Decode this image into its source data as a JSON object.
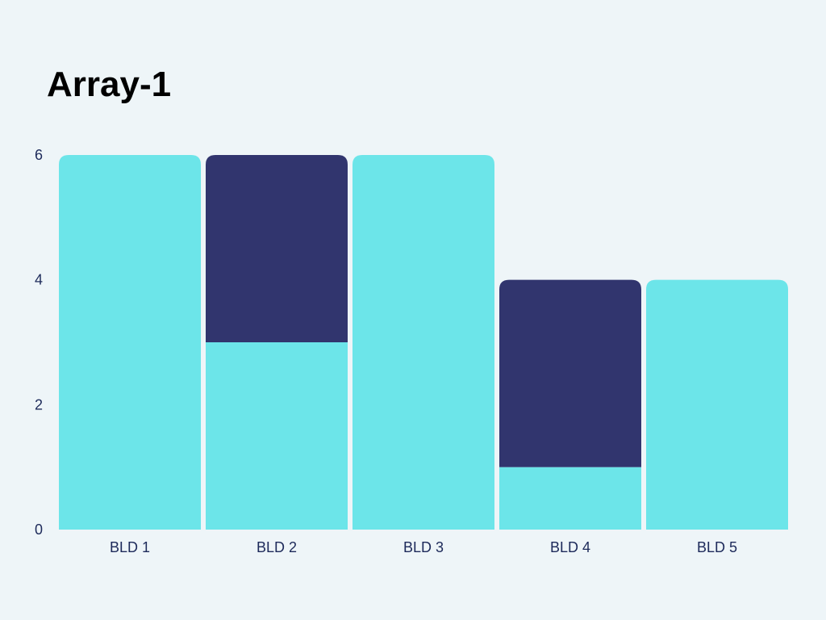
{
  "chart_data": {
    "type": "bar",
    "stacked": true,
    "title": "Array-1",
    "xlabel": "",
    "ylabel": "",
    "categories": [
      "BLD 1",
      "BLD 2",
      "BLD 3",
      "BLD 4",
      "BLD 5"
    ],
    "series": [
      {
        "color": "#6ce5e9",
        "values": [
          6,
          3,
          6,
          1,
          4
        ]
      },
      {
        "color": "#31356e",
        "values": [
          0,
          3,
          0,
          3,
          0
        ]
      }
    ],
    "ylim": [
      0,
      6
    ],
    "yticks": [
      "0",
      "2",
      "4",
      "6"
    ],
    "grid": false,
    "legend": "none"
  }
}
